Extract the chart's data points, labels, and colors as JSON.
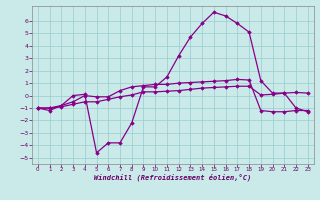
{
  "xlabel": "Windchill (Refroidissement éolien,°C)",
  "bg_color": "#caeaea",
  "grid_color": "#99cccc",
  "line_color": "#880088",
  "xlim": [
    -0.5,
    23.5
  ],
  "ylim": [
    -5.5,
    7.2
  ],
  "yticks": [
    -5,
    -4,
    -3,
    -2,
    -1,
    0,
    1,
    2,
    3,
    4,
    5,
    6
  ],
  "xticks": [
    0,
    1,
    2,
    3,
    4,
    5,
    6,
    7,
    8,
    9,
    10,
    11,
    12,
    13,
    14,
    15,
    16,
    17,
    18,
    19,
    20,
    21,
    22,
    23
  ],
  "line1_x": [
    0,
    1,
    2,
    3,
    4,
    5,
    6,
    7,
    8,
    9,
    10,
    11,
    12,
    13,
    14,
    15,
    16,
    17,
    18,
    19,
    20,
    21,
    22,
    23
  ],
  "line1_y": [
    -1.0,
    -1.2,
    -0.8,
    0.0,
    0.1,
    -4.6,
    -3.8,
    -3.8,
    -2.2,
    0.7,
    0.7,
    1.5,
    3.2,
    4.7,
    5.8,
    6.7,
    6.4,
    5.8,
    5.1,
    1.2,
    0.2,
    0.2,
    -1.0,
    -1.3
  ],
  "line2_x": [
    0,
    1,
    2,
    3,
    4,
    5,
    6,
    7,
    8,
    9,
    10,
    11,
    12,
    13,
    14,
    15,
    16,
    17,
    18,
    19,
    20,
    21,
    22,
    23
  ],
  "line2_y": [
    -1.0,
    -1.0,
    -0.8,
    -0.5,
    0.0,
    -0.1,
    -0.1,
    0.4,
    0.7,
    0.8,
    0.9,
    0.9,
    1.0,
    1.05,
    1.1,
    1.15,
    1.2,
    1.3,
    1.25,
    -1.2,
    -1.3,
    -1.3,
    -1.2,
    -1.2
  ],
  "line3_x": [
    0,
    1,
    2,
    3,
    4,
    5,
    6,
    7,
    8,
    9,
    10,
    11,
    12,
    13,
    14,
    15,
    16,
    17,
    18,
    19,
    20,
    21,
    22,
    23
  ],
  "line3_y": [
    -1.0,
    -1.0,
    -0.9,
    -0.7,
    -0.5,
    -0.5,
    -0.3,
    -0.1,
    0.05,
    0.3,
    0.3,
    0.35,
    0.4,
    0.5,
    0.6,
    0.65,
    0.7,
    0.75,
    0.75,
    0.05,
    0.1,
    0.2,
    0.25,
    0.2
  ]
}
